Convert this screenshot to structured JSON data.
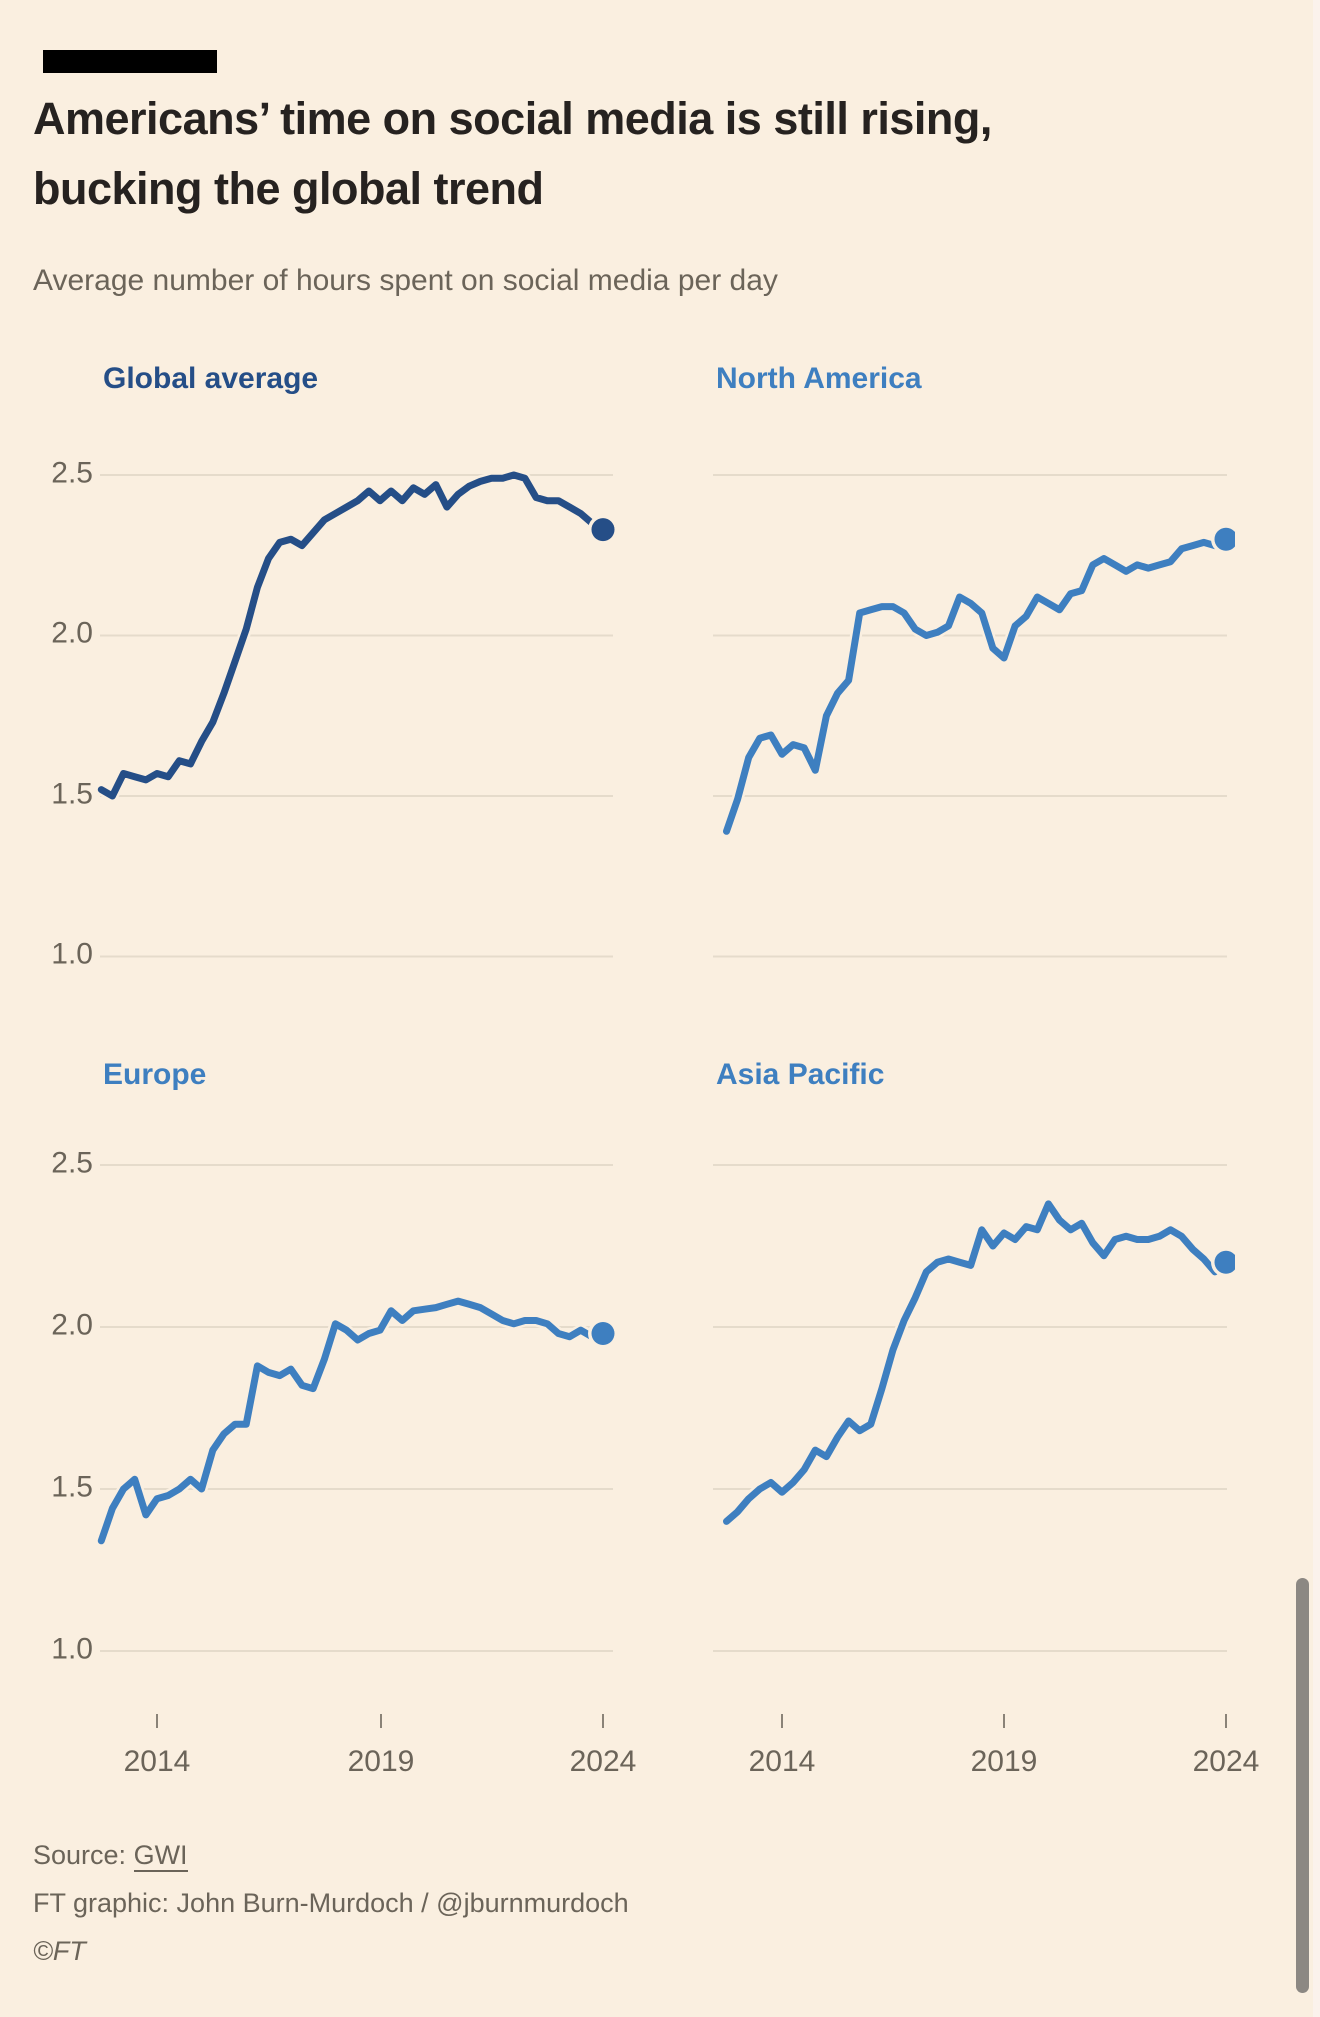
{
  "header": {
    "title_line1": "Americans’ time on social media is still rising,",
    "title_line2": "bucking the global trend",
    "subtitle": "Average number of hours spent on social media per day"
  },
  "chart_data": {
    "type": "line",
    "layout": "2x2 small multiples, shared axes",
    "title": "Americans’ time on social media is still rising, bucking the global trend",
    "subtitle": "Average number of hours spent on social media per day",
    "xlabel": "",
    "ylabel": "hours per day",
    "x_start": 2012.75,
    "x_step": 0.25,
    "xlim": [
      2012.6,
      2024.4
    ],
    "ylim": [
      1.0,
      2.5
    ],
    "yticks": [
      2.5,
      2.0,
      1.5,
      1.0
    ],
    "xticks": [
      2014,
      2019,
      2024
    ],
    "ytick_labels": [
      "2.5",
      "2.0",
      "1.5",
      "1.0"
    ],
    "xtick_labels": [
      "2014",
      "2019",
      "2024"
    ],
    "grid": "horizontal gridlines only",
    "legend": "panel titles colored to match lines, end-point dot markers",
    "background": "#FAEFE0",
    "gridline_color": "#E5DBCB",
    "series": [
      {
        "name": "Global average",
        "color": "#254E87",
        "values": [
          1.52,
          1.5,
          1.57,
          1.56,
          1.55,
          1.57,
          1.56,
          1.61,
          1.6,
          1.67,
          1.73,
          1.82,
          1.92,
          2.02,
          2.15,
          2.24,
          2.29,
          2.3,
          2.28,
          2.32,
          2.36,
          2.38,
          2.4,
          2.42,
          2.45,
          2.42,
          2.45,
          2.42,
          2.46,
          2.44,
          2.47,
          2.4,
          2.44,
          2.465,
          2.48,
          2.49,
          2.49,
          2.5,
          2.49,
          2.43,
          2.42,
          2.42,
          2.4,
          2.38,
          2.35,
          2.33
        ],
        "end_value": 2.33
      },
      {
        "name": "North America",
        "color": "#3E7FC0",
        "values": [
          1.39,
          1.49,
          1.62,
          1.68,
          1.69,
          1.63,
          1.66,
          1.65,
          1.58,
          1.75,
          1.82,
          1.86,
          2.07,
          2.08,
          2.09,
          2.09,
          2.07,
          2.02,
          2.0,
          2.01,
          2.03,
          2.12,
          2.1,
          2.07,
          1.96,
          1.93,
          2.03,
          2.06,
          2.12,
          2.1,
          2.08,
          2.13,
          2.14,
          2.22,
          2.24,
          2.22,
          2.2,
          2.22,
          2.21,
          2.22,
          2.23,
          2.27,
          2.28,
          2.29,
          2.28,
          2.3
        ],
        "end_value": 2.3
      },
      {
        "name": "Europe",
        "color": "#3E7FC0",
        "values": [
          1.34,
          1.44,
          1.5,
          1.53,
          1.42,
          1.47,
          1.48,
          1.5,
          1.53,
          1.5,
          1.62,
          1.67,
          1.7,
          1.7,
          1.88,
          1.86,
          1.85,
          1.87,
          1.82,
          1.81,
          1.9,
          2.01,
          1.99,
          1.96,
          1.98,
          1.99,
          2.05,
          2.02,
          2.05,
          2.055,
          2.06,
          2.07,
          2.08,
          2.07,
          2.06,
          2.04,
          2.02,
          2.01,
          2.02,
          2.02,
          2.01,
          1.98,
          1.97,
          1.99,
          1.97,
          1.98
        ],
        "end_value": 1.98
      },
      {
        "name": "Asia Pacific",
        "color": "#3E7FC0",
        "values": [
          1.4,
          1.43,
          1.47,
          1.5,
          1.52,
          1.49,
          1.52,
          1.56,
          1.62,
          1.6,
          1.66,
          1.71,
          1.68,
          1.7,
          1.81,
          1.93,
          2.02,
          2.09,
          2.17,
          2.2,
          2.21,
          2.2,
          2.19,
          2.3,
          2.25,
          2.29,
          2.27,
          2.31,
          2.3,
          2.38,
          2.33,
          2.3,
          2.32,
          2.26,
          2.22,
          2.27,
          2.28,
          2.27,
          2.27,
          2.28,
          2.3,
          2.28,
          2.24,
          2.21,
          2.17,
          2.2
        ],
        "end_value": 2.2
      }
    ]
  },
  "footer": {
    "source_prefix": "Source: ",
    "source_link": "GWI",
    "credit": "FT graphic: John Burn-Murdoch / @jburnmurdoch",
    "copyright": "©FT"
  }
}
